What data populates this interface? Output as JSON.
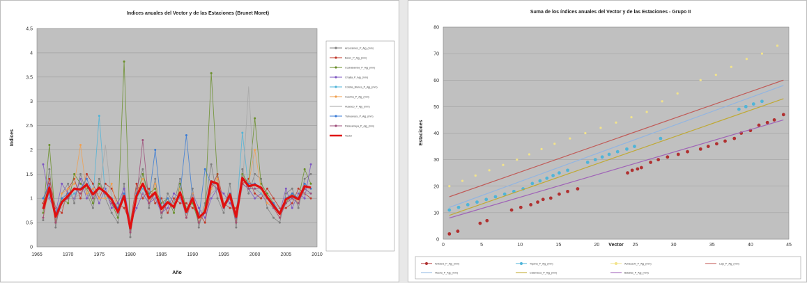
{
  "chart_data": [
    {
      "type": "line",
      "title": "Indices anuales del Vector y de las Estaciones (Brunet Moret)",
      "xlabel": "Año",
      "ylabel": "Indices",
      "xlim": [
        1965,
        2010
      ],
      "ylim": [
        0,
        4.5
      ],
      "xticks": [
        "1965",
        "1970",
        "1975",
        "1980",
        "1985",
        "1990",
        "1995",
        "2000",
        "2005",
        "2010"
      ],
      "yticks": [
        "0",
        "0.5",
        "1",
        "1.5",
        "2",
        "2.5",
        "3",
        "3.5",
        "4",
        "4.5"
      ],
      "grid": true,
      "legend_position": "right",
      "x": [
        1966,
        1967,
        1968,
        1969,
        1970,
        1971,
        1972,
        1973,
        1974,
        1975,
        1976,
        1977,
        1978,
        1979,
        1980,
        1981,
        1982,
        1983,
        1984,
        1985,
        1986,
        1987,
        1988,
        1989,
        1990,
        1991,
        1992,
        1993,
        1994,
        1995,
        1996,
        1997,
        1998,
        1999,
        2000,
        2001,
        2002,
        2003,
        2004,
        2005,
        2006,
        2007,
        2008,
        2009
      ],
      "series": [
        {
          "name": "Vector",
          "color": "#e01010",
          "width": 3.2,
          "values": [
            0.78,
            1.22,
            0.62,
            0.92,
            1.05,
            1.2,
            1.18,
            1.28,
            1.08,
            1.22,
            1.12,
            0.98,
            0.72,
            1.05,
            0.38,
            1.05,
            1.3,
            1.0,
            1.12,
            0.78,
            0.92,
            0.82,
            1.12,
            0.72,
            1.0,
            0.6,
            0.72,
            1.35,
            1.3,
            0.82,
            1.08,
            0.62,
            1.42,
            1.25,
            1.28,
            1.22,
            1.02,
            0.85,
            0.68,
            0.98,
            1.05,
            0.98,
            1.25,
            1.22
          ]
        },
        {
          "name": "Ancoraimes_P_Ajg_(mm)",
          "color": "#7f7f7f",
          "marker": "circle",
          "values": [
            0.55,
            1.6,
            0.4,
            1.1,
            1.3,
            0.9,
            1.5,
            1.1,
            0.8,
            1.4,
            1.0,
            0.7,
            0.5,
            1.3,
            0.2,
            1.2,
            1.6,
            0.8,
            1.4,
            0.6,
            1.1,
            0.9,
            1.4,
            0.6,
            1.2,
            0.4,
            0.9,
            1.7,
            1.0,
            0.7,
            1.3,
            0.4,
            1.6,
            1.1,
            1.5,
            1.4,
            0.8,
            0.6,
            0.5,
            1.1,
            1.2,
            0.8,
            1.4,
            1.5
          ]
        },
        {
          "name": "Belen_P_Ajg_(mm)",
          "color": "#c0392b",
          "marker": "circle",
          "values": [
            0.9,
            1.4,
            0.8,
            0.7,
            1.2,
            1.4,
            1.0,
            1.5,
            1.3,
            1.0,
            1.3,
            1.2,
            0.9,
            0.8,
            0.5,
            1.3,
            1.0,
            1.2,
            0.9,
            1.0,
            0.7,
            1.0,
            0.9,
            0.9,
            0.8,
            0.7,
            0.5,
            1.2,
            1.5,
            0.9,
            0.8,
            0.8,
            1.3,
            1.4,
            1.1,
            1.0,
            1.2,
            1.0,
            0.8,
            0.8,
            0.9,
            1.2,
            1.1,
            1.0
          ]
        },
        {
          "name": "Cochabamba_P_Ajg_(mm)",
          "color": "#6a8f2a",
          "marker": "circle",
          "values": [
            0.7,
            2.1,
            0.5,
            1.0,
            0.9,
            1.5,
            1.3,
            1.2,
            0.9,
            1.3,
            1.1,
            0.9,
            0.6,
            3.82,
            0.3,
            1.0,
            1.5,
            1.1,
            1.2,
            0.9,
            1.0,
            0.7,
            1.3,
            0.8,
            0.9,
            0.5,
            0.8,
            3.58,
            1.4,
            0.8,
            1.0,
            0.5,
            1.5,
            1.3,
            2.65,
            1.3,
            1.1,
            0.9,
            0.7,
            0.9,
            1.1,
            1.0,
            1.6,
            1.3
          ]
        },
        {
          "name": "Chojlla_P_Ajg_(mm)",
          "color": "#7e57c2",
          "marker": "circle",
          "values": [
            1.7,
            1.0,
            0.7,
            1.3,
            1.1,
            1.0,
            1.4,
            1.0,
            1.2,
            0.9,
            1.2,
            0.8,
            0.9,
            1.2,
            0.5,
            0.8,
            1.1,
            0.9,
            1.0,
            0.7,
            0.8,
            1.1,
            1.0,
            0.7,
            1.1,
            0.8,
            0.6,
            1.0,
            1.2,
            1.1,
            0.9,
            0.7,
            1.3,
            1.2,
            1.0,
            1.1,
            0.9,
            0.8,
            0.7,
            1.2,
            0.8,
            1.1,
            1.0,
            1.7
          ]
        },
        {
          "name": "Cotaña_Blanca_P_Ajg_(mm)",
          "color": "#4fb4d8",
          "marker": "circle",
          "values": [
            0.8,
            1.1,
            0.6,
            0.9,
            1.0,
            1.1,
            1.2,
            1.3,
            1.0,
            2.7,
            1.0,
            1.0,
            0.7,
            1.1,
            0.4,
            1.0,
            1.2,
            1.0,
            1.1,
            0.8,
            0.9,
            0.8,
            1.1,
            0.7,
            1.0,
            0.6,
            0.7,
            1.3,
            1.2,
            0.8,
            1.0,
            0.6,
            2.35,
            1.2,
            1.2,
            1.1,
            1.0,
            0.8,
            0.7,
            1.0,
            1.0,
            0.9,
            1.2,
            1.1
          ]
        },
        {
          "name": "Guarina_P_Ajg_(mm)",
          "color": "#f0a050",
          "marker": "circle",
          "values": [
            0.6,
            1.2,
            0.5,
            1.1,
            1.2,
            1.3,
            2.1,
            1.1,
            1.2,
            1.0,
            1.0,
            1.3,
            0.7,
            1.0,
            0.3,
            1.1,
            1.4,
            0.9,
            1.3,
            0.7,
            1.0,
            0.8,
            1.2,
            0.6,
            1.1,
            0.5,
            0.8,
            1.2,
            1.4,
            0.8,
            1.1,
            0.5,
            1.3,
            1.3,
            2.0,
            1.2,
            0.9,
            0.8,
            0.6,
            1.0,
            1.1,
            0.9,
            1.3,
            1.2
          ]
        },
        {
          "name": "Huaraco_P_Ajg_(mm)",
          "color": "#a6a6a6",
          "marker": "none",
          "values": [
            0.9,
            1.0,
            0.8,
            0.8,
            1.1,
            1.0,
            1.1,
            1.2,
            1.0,
            1.1,
            2.1,
            1.0,
            0.8,
            1.0,
            0.5,
            1.1,
            1.1,
            1.0,
            1.0,
            0.8,
            0.9,
            0.9,
            1.0,
            0.8,
            1.0,
            0.7,
            0.8,
            1.1,
            1.2,
            0.9,
            1.0,
            0.7,
            1.2,
            3.3,
            1.2,
            1.1,
            1.0,
            0.9,
            0.8,
            0.9,
            1.0,
            1.0,
            1.1,
            1.1
          ]
        },
        {
          "name": "Tiahuanacu_P_Ajg_(mm)",
          "color": "#3a7bd5",
          "marker": "circle",
          "values": [
            1.0,
            1.3,
            0.7,
            1.0,
            1.1,
            1.2,
            1.2,
            1.4,
            1.1,
            1.2,
            1.1,
            1.0,
            0.8,
            1.1,
            0.4,
            1.1,
            1.3,
            1.0,
            2.0,
            0.8,
            1.0,
            0.8,
            1.1,
            2.3,
            1.0,
            0.6,
            1.6,
            1.3,
            1.3,
            0.8,
            1.1,
            0.6,
            1.4,
            1.3,
            1.3,
            1.2,
            1.0,
            0.9,
            0.7,
            1.0,
            1.1,
            1.0,
            1.3,
            1.2
          ]
        },
        {
          "name": "Patacamaya_P_Ajg_(mm)",
          "color": "#9e4d7a",
          "marker": "circle",
          "values": [
            0.6,
            1.3,
            0.5,
            0.9,
            1.0,
            1.2,
            1.1,
            1.3,
            1.0,
            1.2,
            1.1,
            0.9,
            0.7,
            1.0,
            0.3,
            1.0,
            2.2,
            0.9,
            1.1,
            0.7,
            0.9,
            0.8,
            1.1,
            0.6,
            1.0,
            0.5,
            0.7,
            1.3,
            1.2,
            0.8,
            1.0,
            0.5,
            1.3,
            1.2,
            1.2,
            1.2,
            1.0,
            0.8,
            0.6,
            0.9,
            1.0,
            0.9,
            1.2,
            1.1
          ]
        }
      ]
    },
    {
      "type": "scatter",
      "title": "Suma de los índices anuales del Vector y de las Estaciones - Grupo II",
      "xlabel": "Vector",
      "ylabel": "Estaciones",
      "xlim": [
        0,
        45
      ],
      "ylim": [
        0,
        80
      ],
      "xticks": [
        "0",
        "5",
        "10",
        "15",
        "20",
        "25",
        "30",
        "35",
        "40",
        "45"
      ],
      "yticks": [
        "0",
        "10",
        "20",
        "30",
        "40",
        "50",
        "60",
        "70",
        "80"
      ],
      "grid": true,
      "legend_position": "bottom",
      "series": [
        {
          "name": "Ambana_P_Ajg_(mm)",
          "color": "#b03030",
          "marker": "circle",
          "x": [
            0.8,
            1.9,
            4.8,
            5.7,
            8.9,
            10.1,
            11.4,
            12.3,
            13.0,
            14.0,
            15.1,
            16.2,
            17.5,
            24.0,
            24.6,
            25.3,
            25.8,
            27.0,
            28.0,
            29.2,
            30.6,
            31.8,
            33.5,
            34.5,
            35.6,
            36.7,
            37.9,
            38.8,
            40.0,
            41.1,
            42.2,
            43.1,
            44.3
          ],
          "y": [
            2,
            3,
            6,
            7,
            11,
            12,
            13,
            14,
            15,
            15.5,
            17,
            18,
            19,
            25,
            26,
            26.5,
            27,
            29,
            30,
            31,
            32,
            33,
            34,
            35,
            36,
            37,
            38,
            40,
            41,
            43,
            44,
            45,
            47
          ]
        },
        {
          "name": "Tiquina_P_Ajg_(mm)",
          "color": "#4fb4d8",
          "marker": "circle",
          "x": [
            0.8,
            2.0,
            3.2,
            4.4,
            5.6,
            6.8,
            8.0,
            9.2,
            10.4,
            11.6,
            12.6,
            13.5,
            14.3,
            15.1,
            16.2,
            18.8,
            19.8,
            20.7,
            21.6,
            22.7,
            23.9,
            24.9,
            28.3,
            38.5,
            39.4,
            40.4,
            41.5
          ],
          "y": [
            11,
            12,
            13,
            14,
            15,
            16,
            17,
            18,
            19,
            21,
            22,
            23,
            24,
            25,
            26,
            29,
            30,
            31,
            32,
            33,
            34,
            35,
            38,
            49,
            50,
            51,
            52
          ]
        },
        {
          "name": "Achacachi_P_Ajg_(mm)",
          "color": "#f2e38a",
          "marker": "circle",
          "x": [
            0.8,
            2.5,
            4.2,
            6.0,
            7.8,
            9.6,
            11.2,
            12.8,
            14.5,
            16.5,
            18.5,
            20.5,
            22.5,
            24.5,
            26.5,
            28.5,
            30.5,
            33.5,
            35.5,
            37.5,
            39.5,
            41.5,
            43.5
          ],
          "y": [
            20,
            22,
            24,
            26,
            28,
            30,
            32,
            34,
            36,
            38,
            40,
            42,
            44,
            46,
            48,
            52,
            55,
            60,
            62,
            65,
            68,
            70,
            73
          ]
        },
        {
          "name": "Laja_P_Ajg_(mm)",
          "color": "#c0504d",
          "marker": "none",
          "x": [
            0.8,
            44.3
          ],
          "y": [
            16,
            60
          ]
        },
        {
          "name": "Viacha_P_Ajg_(mm)",
          "color": "#8eb4e3",
          "marker": "none",
          "x": [
            0.8,
            44.3
          ],
          "y": [
            12,
            58
          ]
        },
        {
          "name": "Calamarca_P_Ajg_(mm)",
          "color": "#bfa626",
          "marker": "none",
          "x": [
            0.8,
            44.3
          ],
          "y": [
            9,
            53
          ]
        },
        {
          "name": "Batallas_P_Ajg_(mm)",
          "color": "#9b59b6",
          "marker": "none",
          "x": [
            0.8,
            44.3
          ],
          "y": [
            8,
            45
          ]
        }
      ]
    }
  ]
}
